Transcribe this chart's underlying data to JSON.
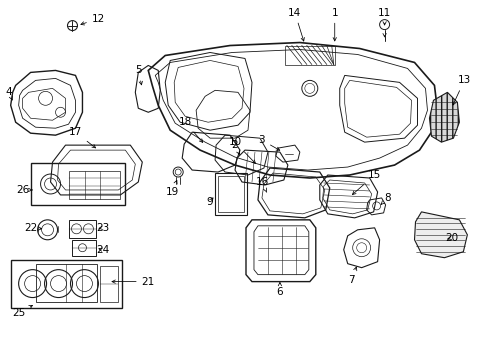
{
  "background_color": "#ffffff",
  "line_color": "#1a1a1a",
  "fig_width": 4.89,
  "fig_height": 3.6,
  "dpi": 100,
  "font_size": 7.5
}
